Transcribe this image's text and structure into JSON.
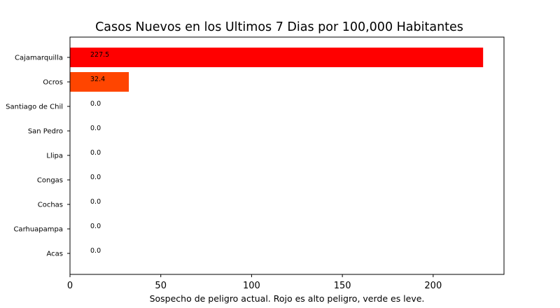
{
  "chart_data": {
    "type": "bar",
    "orientation": "horizontal",
    "title": "Casos Nuevos en los Ultimos 7 Dias por 100,000 Habitantes",
    "xlabel": "Sospecho de peligro actual. Rojo es alto peligro, verde es leve.",
    "ylabel": "",
    "categories": [
      "Cajamarquilla",
      "Ocros",
      "Santiago de Chil",
      "San Pedro",
      "Llipa",
      "Congas",
      "Cochas",
      "Carhuapampa",
      "Acas"
    ],
    "values": [
      227.5,
      32.4,
      0.0,
      0.0,
      0.0,
      0.0,
      0.0,
      0.0,
      0.0
    ],
    "data_labels": [
      "227.5",
      "32.4",
      "0.0",
      "0.0",
      "0.0",
      "0.0",
      "0.0",
      "0.0",
      "0.0"
    ],
    "bar_colors": [
      "#ff0000",
      "#ff4500",
      "#ffffff",
      "#ffffff",
      "#ffffff",
      "#ffffff",
      "#ffffff",
      "#ffffff",
      "#ffffff"
    ],
    "xlim": [
      0,
      239
    ],
    "xticks": [
      0,
      50,
      100,
      150,
      200
    ],
    "grid": false,
    "legend": "none"
  }
}
